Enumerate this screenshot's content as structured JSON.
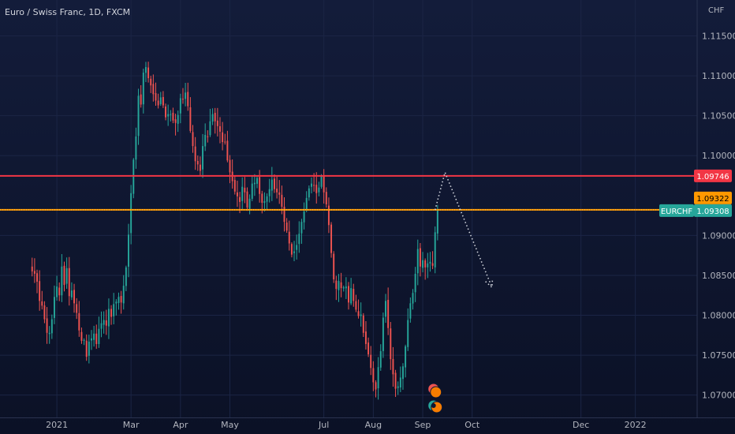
{
  "chart_data": {
    "type": "candlestick",
    "title": "Euro / Swiss Franc, 1D, FXCM",
    "currency": "CHF",
    "y_ticks": [
      "1.11500",
      "1.11000",
      "1.10500",
      "1.10000",
      "1.09000",
      "1.08500",
      "1.08000",
      "1.07500",
      "1.07000"
    ],
    "ylim": [
      1.0672,
      1.1195
    ],
    "x_ticks": [
      {
        "label": "2021",
        "idx": 10
      },
      {
        "label": "Mar",
        "idx": 40
      },
      {
        "label": "Apr",
        "idx": 60
      },
      {
        "label": "May",
        "idx": 80
      },
      {
        "label": "Jul",
        "idx": 118
      },
      {
        "label": "Aug",
        "idx": 138
      },
      {
        "label": "Sep",
        "idx": 158
      },
      {
        "label": "Oct",
        "idx": 178
      },
      {
        "label": "Dec",
        "idx": 222
      },
      {
        "label": "2022",
        "idx": 244
      }
    ],
    "x_range": [
      -13,
      269
    ],
    "resistance": {
      "value": 1.09746,
      "label": "1.09746",
      "color": "#f23645"
    },
    "support": {
      "value": 1.09322,
      "label": "1.09322",
      "color": "#ff9800"
    },
    "last_price": {
      "symbol": "EURCHF",
      "value": 1.09308,
      "label": "1.09308",
      "color": "#26a69a"
    },
    "up_color": "#26a69a",
    "down_color": "#ef5350",
    "projection": [
      [
        163,
        1.0932
      ],
      [
        167,
        1.0979
      ],
      [
        186,
        1.0835
      ]
    ],
    "closes": [
      1.0855,
      1.0852,
      1.0842,
      1.0818,
      1.0812,
      1.0795,
      1.0778,
      1.0778,
      1.0795,
      1.0823,
      1.0836,
      1.0825,
      1.0861,
      1.0838,
      1.0859,
      1.0824,
      1.0831,
      1.0815,
      1.0803,
      1.0781,
      1.0768,
      1.0769,
      1.0748,
      1.0767,
      1.0771,
      1.0777,
      1.0764,
      1.0783,
      1.079,
      1.0794,
      1.0787,
      1.0808,
      1.0798,
      1.0814,
      1.0817,
      1.0823,
      1.0816,
      1.0837,
      1.086,
      1.0901,
      1.0953,
      1.0995,
      1.1024,
      1.1075,
      1.1064,
      1.1104,
      1.1111,
      1.1097,
      1.1088,
      1.1077,
      1.1069,
      1.1063,
      1.1073,
      1.1063,
      1.1048,
      1.1052,
      1.1052,
      1.1044,
      1.1041,
      1.1051,
      1.1072,
      1.1071,
      1.1079,
      1.1062,
      1.1031,
      1.1012,
      1.0993,
      1.0989,
      1.0981,
      1.1012,
      1.1026,
      1.1024,
      1.1043,
      1.1052,
      1.1043,
      1.1037,
      1.103,
      1.1017,
      1.1017,
      1.0994,
      1.0979,
      1.0968,
      1.0955,
      1.0949,
      1.0942,
      1.0961,
      1.0954,
      1.0935,
      1.0946,
      1.0965,
      1.0966,
      1.0972,
      1.0952,
      1.0941,
      1.0943,
      1.0949,
      1.0958,
      1.097,
      1.0958,
      1.0954,
      1.0951,
      1.0936,
      1.0917,
      1.0906,
      1.089,
      1.0876,
      1.088,
      1.0888,
      1.0902,
      1.0917,
      1.093,
      1.0947,
      1.0959,
      1.0965,
      1.0963,
      1.0953,
      1.096,
      1.0974,
      1.0954,
      1.0939,
      1.0913,
      1.0878,
      1.0845,
      1.0833,
      1.0843,
      1.0834,
      1.0835,
      1.0836,
      1.0816,
      1.0834,
      1.0818,
      1.0807,
      1.0799,
      1.0801,
      1.0778,
      1.0764,
      1.0751,
      1.0734,
      1.0716,
      1.0707,
      1.0735,
      1.0755,
      1.0797,
      1.0818,
      1.0784,
      1.0745,
      1.0726,
      1.0708,
      1.0711,
      1.0722,
      1.0736,
      1.0761,
      1.0794,
      1.0815,
      1.0828,
      1.0852,
      1.0883,
      1.0861,
      1.0869,
      1.086,
      1.0865,
      1.0867,
      1.0862,
      1.0904,
      1.0931
    ]
  }
}
